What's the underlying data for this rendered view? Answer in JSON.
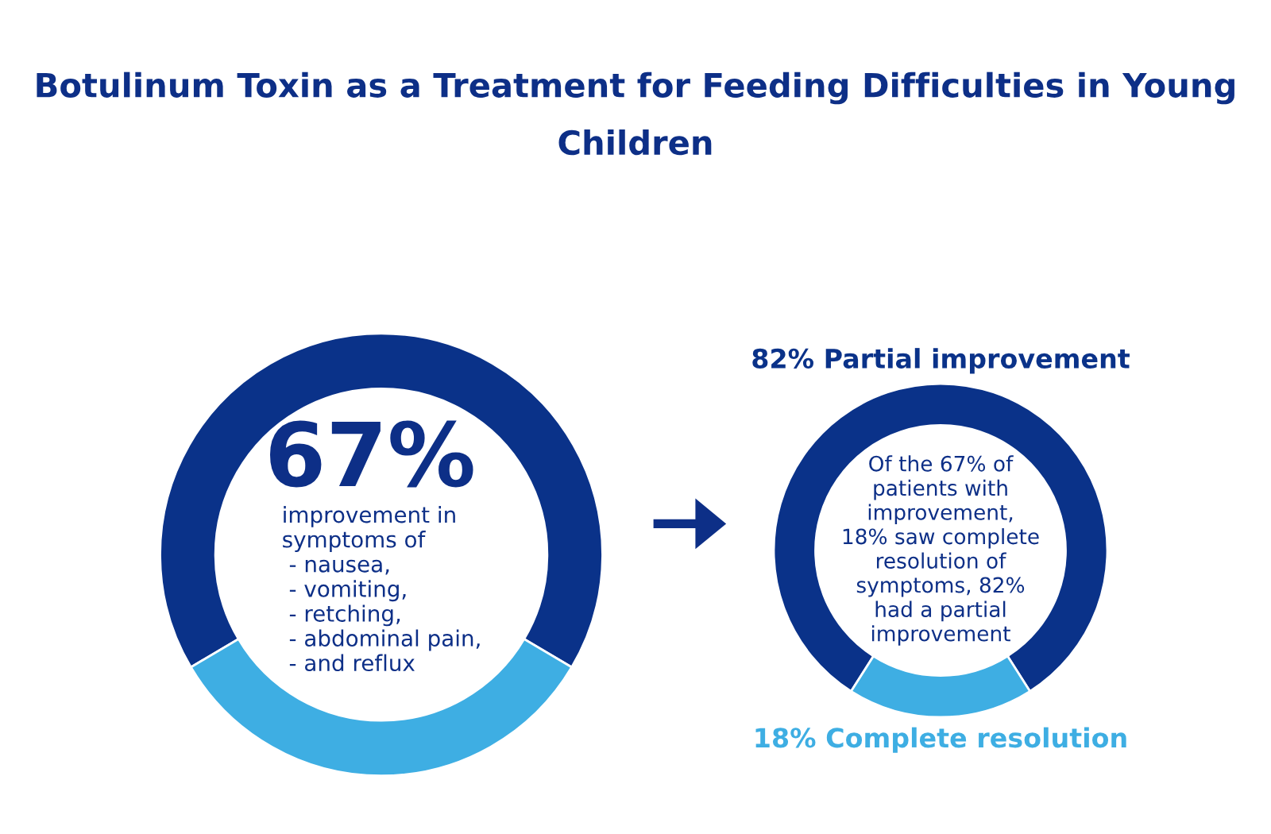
{
  "chart_data": [
    {
      "type": "donut",
      "title": "Botulinum Toxin as a Treatment for Feeding Difficulties in Young Children",
      "categories": [
        null,
        null
      ],
      "values": [
        67,
        33
      ],
      "colors": [
        "#0a3289",
        "#3eaee3"
      ],
      "value_labels": [
        "67%",
        null
      ],
      "annotations": [
        "improvement in\nsymptoms of\n - nausea,\n - vomiting,\n - retching,\n - abdominal pain,\n - and reflux"
      ]
    },
    {
      "type": "donut",
      "categories": [
        "82% Partial improvement",
        "18% Complete resolution"
      ],
      "values": [
        82,
        18
      ],
      "colors": [
        "#0a3289",
        "#3eaee3"
      ],
      "annotations": [
        "Of the 67% of\npatients with\nimprovement,\n18% saw complete\nresolution of\nsymptoms, 82%\nhad a partial\nimprovement"
      ]
    }
  ]
}
